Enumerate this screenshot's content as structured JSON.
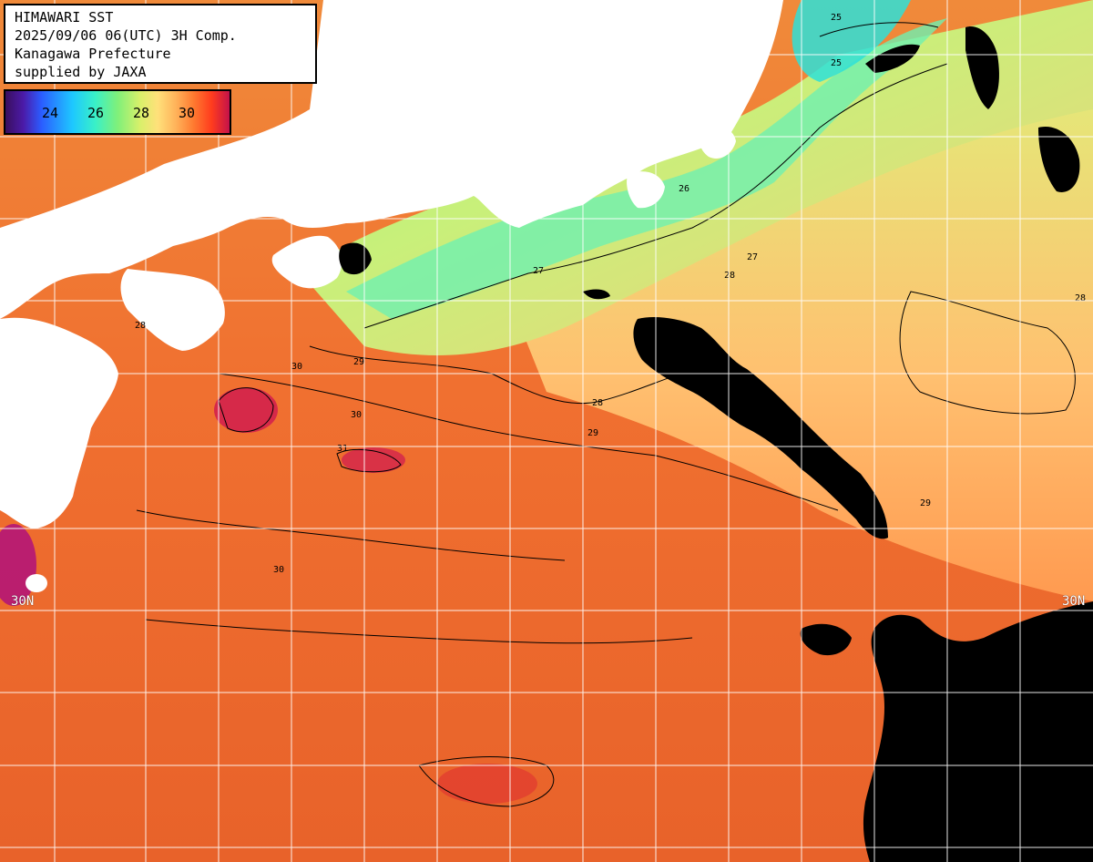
{
  "title": {
    "line1": "HIMAWARI SST",
    "line2": "2025/09/06 06(UTC) 3H Comp.",
    "line3": "Kanagawa Prefecture",
    "line4": "supplied by JAXA"
  },
  "scale": {
    "labels": [
      "24",
      "26",
      "28",
      "30"
    ],
    "unit": ""
  },
  "grid": {
    "lat_label_left": "30N",
    "lat_label_right": "30N"
  },
  "contour_labels": [
    "25",
    "25",
    "26",
    "27",
    "27",
    "28",
    "28",
    "28",
    "29",
    "29",
    "29",
    "30",
    "30",
    "30",
    "31",
    "28"
  ],
  "colors": {
    "land": "#ffffff",
    "cloud": "#000000",
    "grid": "#ffffff",
    "sst_24": "#2b5cff",
    "sst_26": "#39f0c8",
    "sst_28": "#ffe07a",
    "sst_30": "#ff3c1e"
  }
}
